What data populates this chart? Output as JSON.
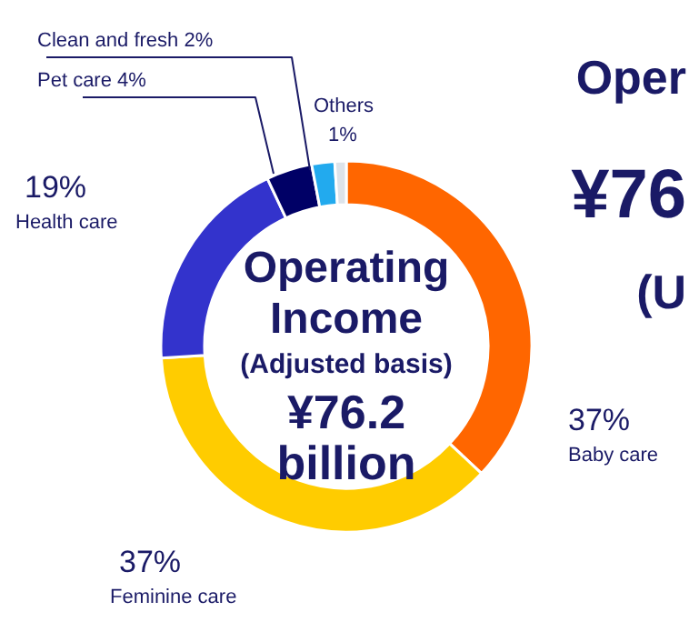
{
  "chart_data": {
    "type": "donut",
    "title": "Operating Income",
    "subtitle": "(Adjusted basis)",
    "categories": [
      "Baby care",
      "Feminine care",
      "Health care",
      "Pet care",
      "Clean and fresh",
      "Others"
    ],
    "values": [
      37,
      37,
      19,
      4,
      2,
      1
    ],
    "value_labels": [
      "37%",
      "37%",
      "19%",
      "4%",
      "2%",
      "1%"
    ],
    "colors": [
      "#ff6600",
      "#ffcc00",
      "#3333cc",
      "#000066",
      "#22aaee",
      "#dde3ea"
    ],
    "annotations": [
      "¥76.2",
      "billion",
      "Oper",
      "¥76",
      "(U"
    ]
  }
}
